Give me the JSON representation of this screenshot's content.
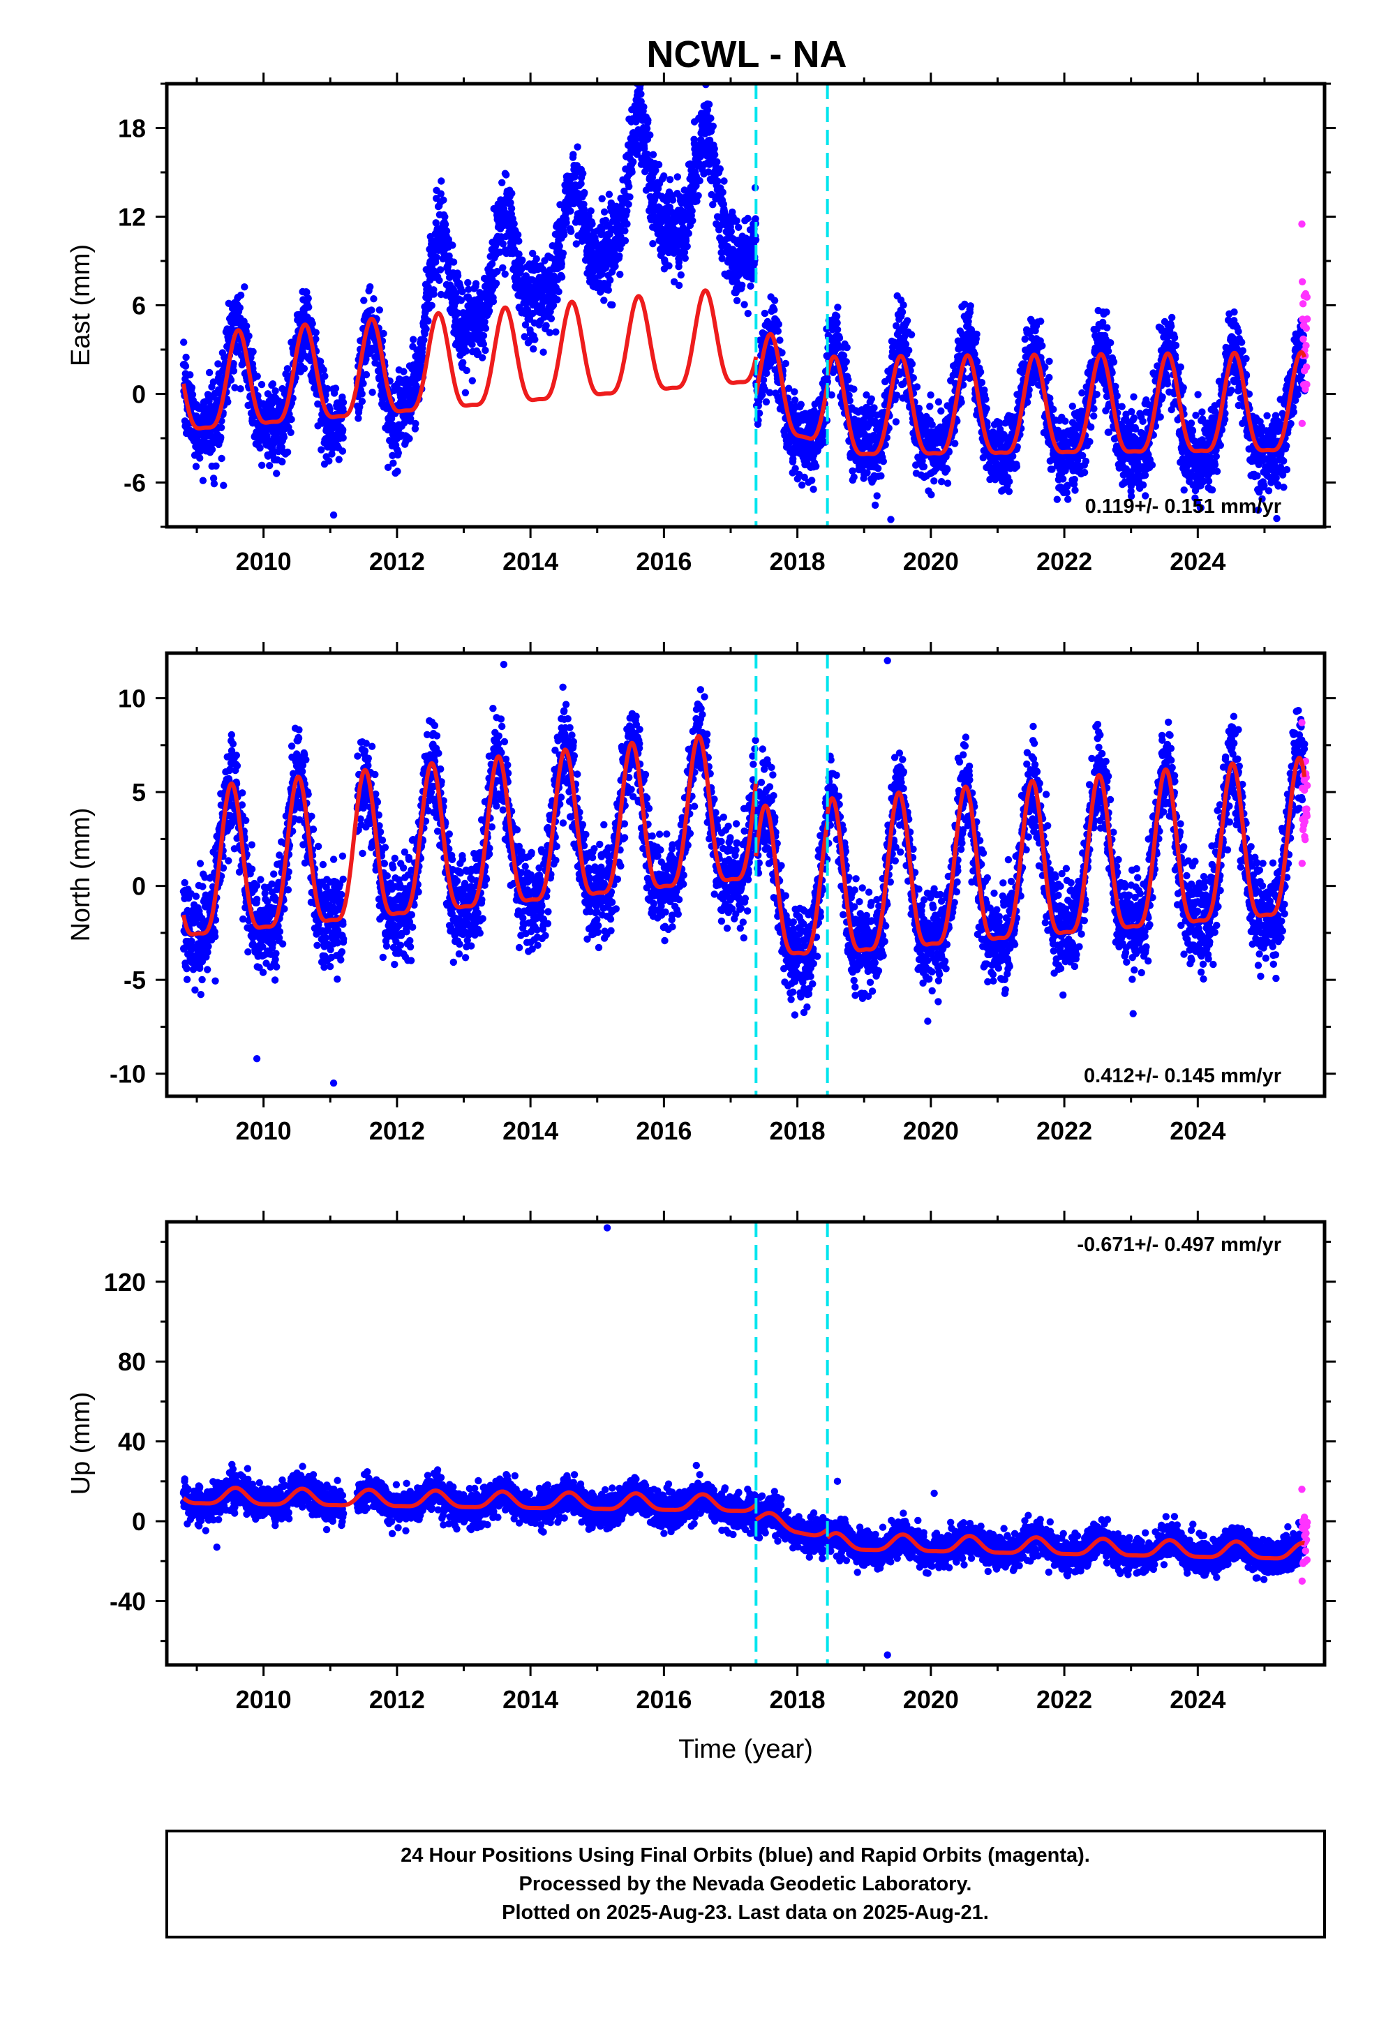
{
  "title": "NCWL - NA",
  "caption": {
    "lines": [
      "24 Hour Positions Using Final Orbits (blue) and Rapid Orbits (magenta).",
      "Processed by the Nevada Geodetic Laboratory.",
      "Plotted on 2025-Aug-23. Last data on 2025-Aug-21."
    ]
  },
  "colors": {
    "final_orbits": "#0000ff",
    "rapid_orbits": "#ff33ff",
    "model_fit": "#ee1c1c",
    "equipment_change": "#00e5ee",
    "frame": "#000000"
  },
  "chart_data": [
    {
      "type": "scatter",
      "panel": "east",
      "ylabel": "East (mm)",
      "xlabel": "",
      "xlim": [
        2008.55,
        2025.9
      ],
      "ylim": [
        -9,
        21
      ],
      "x_ticks": [
        "2010",
        "2012",
        "2014",
        "2016",
        "2018",
        "2020",
        "2022",
        "2024"
      ],
      "y_ticks": [
        "-6",
        "0",
        "6",
        "12",
        "18"
      ],
      "rate_label": "0.119+/- 0.151 mm/yr",
      "rate_label_position": "bottom-right",
      "grid": false,
      "vertical_markers": [
        2017.38,
        2018.45
      ],
      "series": [
        {
          "role": "final",
          "x_range": [
            2008.8,
            2025.6
          ],
          "gap": [
            2011.2,
            2011.4
          ],
          "noise_sd": 1.35
        },
        {
          "role": "rapid",
          "x_range": [
            2025.56,
            2025.64
          ],
          "y_range": [
            -2,
            11.5
          ]
        },
        {
          "role": "model",
          "segments": [
            {
              "x": [
                2008.8,
                2017.38
              ],
              "offset": [
                -0.1,
                3.2
              ],
              "annual_amplitude": 3.2,
              "annual_peak": 2009.62
            },
            {
              "x": [
                2017.38,
                2018.45
              ],
              "offset": [
                0.2,
                -1.0
              ],
              "annual_amplitude": 3.2,
              "annual_peak": 2017.6
            },
            {
              "x": [
                2018.45,
                2025.6
              ],
              "offset": [
                -1.7,
                -1.4
              ],
              "annual_amplitude": 3.3,
              "annual_peak": 2019.55
            }
          ]
        },
        {
          "role": "observed_offset",
          "pre_2017_trend": [
            [
              2008.8,
              0.2
            ],
            [
              2011.0,
              0.3
            ],
            [
              2012.0,
              0.2
            ],
            [
              2012.6,
              6.5
            ],
            [
              2013.6,
              8.0
            ],
            [
              2014.6,
              9.5
            ],
            [
              2015.6,
              14.0
            ],
            [
              2016.7,
              13.0
            ],
            [
              2017.3,
              11.5
            ]
          ],
          "post_2017_trend": [
            [
              2017.38,
              -0.8
            ],
            [
              2025.6,
              -1.8
            ]
          ]
        },
        {
          "role": "outliers",
          "points": [
            [
              2009.4,
              -6.2
            ],
            [
              2011.05,
              -8.2
            ],
            [
              2015.6,
              20.2
            ],
            [
              2019.4,
              -8.5
            ]
          ]
        }
      ]
    },
    {
      "type": "scatter",
      "panel": "north",
      "ylabel": "North (mm)",
      "xlabel": "",
      "xlim": [
        2008.55,
        2025.9
      ],
      "ylim": [
        -11.2,
        12.4
      ],
      "x_ticks": [
        "2010",
        "2012",
        "2014",
        "2016",
        "2018",
        "2020",
        "2022",
        "2024"
      ],
      "y_ticks": [
        "-10",
        "-5",
        "0",
        "5",
        "10"
      ],
      "rate_label": "0.412+/- 0.145 mm/yr",
      "rate_label_position": "bottom-right",
      "grid": false,
      "vertical_markers": [
        2017.38,
        2018.45
      ],
      "series": [
        {
          "role": "final",
          "x_range": [
            2008.8,
            2025.6
          ],
          "gap": [
            2011.2,
            2011.4
          ],
          "noise_sd": 1.25
        },
        {
          "role": "rapid",
          "x_range": [
            2025.56,
            2025.64
          ],
          "y_range": [
            1.2,
            8.7
          ]
        },
        {
          "role": "model",
          "segments": [
            {
              "x": [
                2008.8,
                2017.38
              ],
              "offset": [
                0.2,
                3.3
              ],
              "annual_amplitude": 3.9,
              "annual_peak": 2009.52
            },
            {
              "x": [
                2017.38,
                2018.45
              ],
              "offset": [
                -0.7,
                -0.8
              ],
              "annual_amplitude": 3.9,
              "annual_peak": 2017.52
            },
            {
              "x": [
                2018.45,
                2025.6
              ],
              "offset": [
                -0.6,
                1.6
              ],
              "annual_amplitude": 4.1,
              "annual_peak": 2019.52
            }
          ]
        },
        {
          "role": "outliers",
          "points": [
            [
              2009.9,
              -9.2
            ],
            [
              2011.05,
              -10.5
            ],
            [
              2013.6,
              11.8
            ],
            [
              2019.35,
              12.0
            ]
          ]
        }
      ]
    },
    {
      "type": "scatter",
      "panel": "up",
      "ylabel": "Up (mm)",
      "xlabel": "Time (year)",
      "xlim": [
        2008.55,
        2025.9
      ],
      "ylim": [
        -72,
        150
      ],
      "x_ticks": [
        "2010",
        "2012",
        "2014",
        "2016",
        "2018",
        "2020",
        "2022",
        "2024"
      ],
      "y_ticks": [
        "-40",
        "0",
        "40",
        "80",
        "120"
      ],
      "rate_label": "-0.671+/- 0.497 mm/yr",
      "rate_label_position": "top-right",
      "grid": false,
      "vertical_markers": [
        2017.38,
        2018.45
      ],
      "series": [
        {
          "role": "final",
          "x_range": [
            2008.8,
            2025.6
          ],
          "gap": [
            2011.2,
            2011.4
          ],
          "noise_sd": 4.3
        },
        {
          "role": "rapid",
          "x_range": [
            2025.56,
            2025.64
          ],
          "y_range": [
            -30,
            16
          ]
        },
        {
          "role": "model",
          "segments": [
            {
              "x": [
                2008.8,
                2017.38
              ],
              "offset": [
                12,
                8
              ],
              "annual_amplitude": 4,
              "annual_peak": 2009.58
            },
            {
              "x": [
                2017.38,
                2018.45
              ],
              "offset": [
                1,
                -6
              ],
              "annual_amplitude": 3.5,
              "annual_peak": 2017.6
            },
            {
              "x": [
                2018.45,
                2025.6
              ],
              "offset": [
                -11,
                -16
              ],
              "annual_amplitude": 4,
              "annual_peak": 2019.58
            }
          ]
        },
        {
          "role": "outliers",
          "points": [
            [
              2009.3,
              -13
            ],
            [
              2015.15,
              147
            ],
            [
              2019.35,
              -67
            ],
            [
              2020.05,
              14
            ],
            [
              2018.6,
              20
            ]
          ]
        }
      ]
    }
  ]
}
